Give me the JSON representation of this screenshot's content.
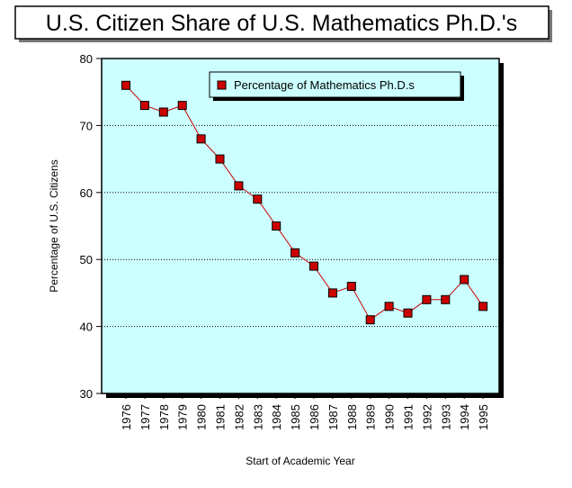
{
  "chart_data": {
    "type": "line",
    "title": "U.S. Citizen Share of U.S. Mathematics Ph.D.'s",
    "xlabel": "Start of Academic Year",
    "ylabel": "Percentage of U.S. Citizens",
    "ylim": [
      30,
      80
    ],
    "yticks": [
      "30",
      "40",
      "50",
      "60",
      "70",
      "80"
    ],
    "grid": "horizontal dotted",
    "legend_position": "top-right",
    "categories": [
      "1976",
      "1977",
      "1978",
      "1979",
      "1980",
      "1981",
      "1982",
      "1983",
      "1984",
      "1985",
      "1986",
      "1987",
      "1988",
      "1989",
      "1990",
      "1991",
      "1992",
      "1993",
      "1994",
      "1995"
    ],
    "series": [
      {
        "name": "Percentage of Mathematics Ph.D.s",
        "values": [
          76,
          73,
          72,
          73,
          68,
          65,
          61,
          59,
          55,
          51,
          49,
          45,
          46,
          41,
          43,
          42,
          44,
          44,
          47,
          43
        ]
      }
    ],
    "colors": {
      "plot_background": "#ccffff",
      "line": "#cc0000",
      "marker": "#cc0000"
    }
  }
}
